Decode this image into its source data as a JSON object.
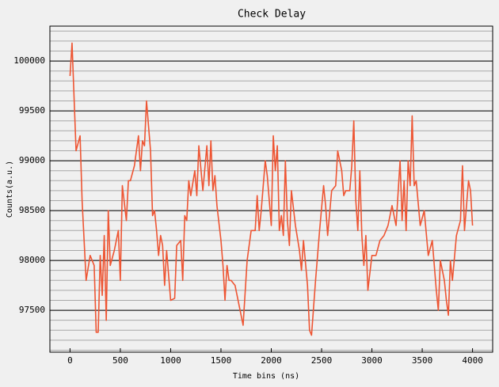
{
  "chart_data": {
    "type": "line",
    "title": "Check Delay",
    "xlabel": "Time bins (ns)",
    "ylabel": "Counts(a.u.)",
    "x": [
      0,
      20,
      60,
      100,
      120,
      160,
      200,
      240,
      260,
      280,
      300,
      320,
      340,
      360,
      380,
      400,
      440,
      480,
      500,
      520,
      560,
      580,
      600,
      640,
      680,
      700,
      720,
      740,
      760,
      800,
      820,
      840,
      860,
      880,
      900,
      920,
      940,
      960,
      1000,
      1040,
      1060,
      1100,
      1120,
      1140,
      1160,
      1180,
      1200,
      1240,
      1260,
      1280,
      1320,
      1360,
      1380,
      1400,
      1420,
      1440,
      1460,
      1500,
      1520,
      1540,
      1560,
      1580,
      1600,
      1640,
      1680,
      1720,
      1760,
      1800,
      1840,
      1860,
      1880,
      1900,
      1940,
      1960,
      1980,
      2000,
      2020,
      2040,
      2060,
      2080,
      2100,
      2120,
      2140,
      2160,
      2180,
      2200,
      2240,
      2280,
      2300,
      2320,
      2360,
      2380,
      2400,
      2440,
      2480,
      2520,
      2540,
      2560,
      2600,
      2640,
      2660,
      2700,
      2720,
      2740,
      2780,
      2800,
      2820,
      2840,
      2860,
      2880,
      2900,
      2920,
      2940,
      2960,
      3000,
      3040,
      3080,
      3120,
      3160,
      3200,
      3240,
      3280,
      3300,
      3320,
      3340,
      3360,
      3380,
      3400,
      3420,
      3440,
      3480,
      3520,
      3560,
      3600,
      3640,
      3660,
      3680,
      3720,
      3740,
      3760,
      3780,
      3800,
      3840,
      3880,
      3900,
      3920,
      3960,
      3980,
      4000
    ],
    "series": [
      {
        "name": "Counts",
        "color": "#ee5533",
        "values": [
          99850,
          100180,
          99100,
          99250,
          98600,
          97800,
          98050,
          97950,
          97280,
          97280,
          98050,
          97650,
          98250,
          97400,
          98500,
          97950,
          98100,
          98300,
          97800,
          98750,
          98400,
          98800,
          98800,
          98950,
          99250,
          98900,
          99200,
          99150,
          99600,
          99100,
          98450,
          98500,
          98300,
          98050,
          98250,
          98150,
          97750,
          98100,
          97600,
          97620,
          98150,
          98200,
          97800,
          98450,
          98400,
          98800,
          98650,
          98900,
          98650,
          99150,
          98700,
          99150,
          98750,
          99200,
          98700,
          98850,
          98550,
          98200,
          97950,
          97600,
          97950,
          97800,
          97800,
          97750,
          97550,
          97350,
          98000,
          98300,
          98300,
          98650,
          98300,
          98500,
          99000,
          98850,
          98600,
          98350,
          99250,
          98900,
          99150,
          98300,
          98450,
          98250,
          99000,
          98400,
          98150,
          98700,
          98350,
          98100,
          97900,
          98200,
          97750,
          97300,
          97250,
          97800,
          98300,
          98750,
          98550,
          98250,
          98700,
          98750,
          99100,
          98900,
          98650,
          98700,
          98700,
          98950,
          99400,
          98600,
          98300,
          98900,
          98250,
          97950,
          98250,
          97700,
          98050,
          98050,
          98200,
          98250,
          98350,
          98550,
          98350,
          99000,
          98400,
          98800,
          98300,
          99000,
          98750,
          99450,
          98750,
          98800,
          98350,
          98500,
          98050,
          98200,
          97700,
          97500,
          98000,
          97800,
          97600,
          97450,
          98000,
          97800,
          98250,
          98400,
          98950,
          98300,
          98800,
          98700,
          98350
        ]
      }
    ],
    "xlim": [
      -200,
      4200
    ],
    "ylim": [
      97080,
      100350
    ],
    "xticks": [
      0,
      500,
      1000,
      1500,
      2000,
      2500,
      3000,
      3500,
      4000
    ],
    "yticks": [
      97500,
      98000,
      98500,
      99000,
      99500,
      100000
    ],
    "grid": true,
    "minor_grid_step": 100
  }
}
